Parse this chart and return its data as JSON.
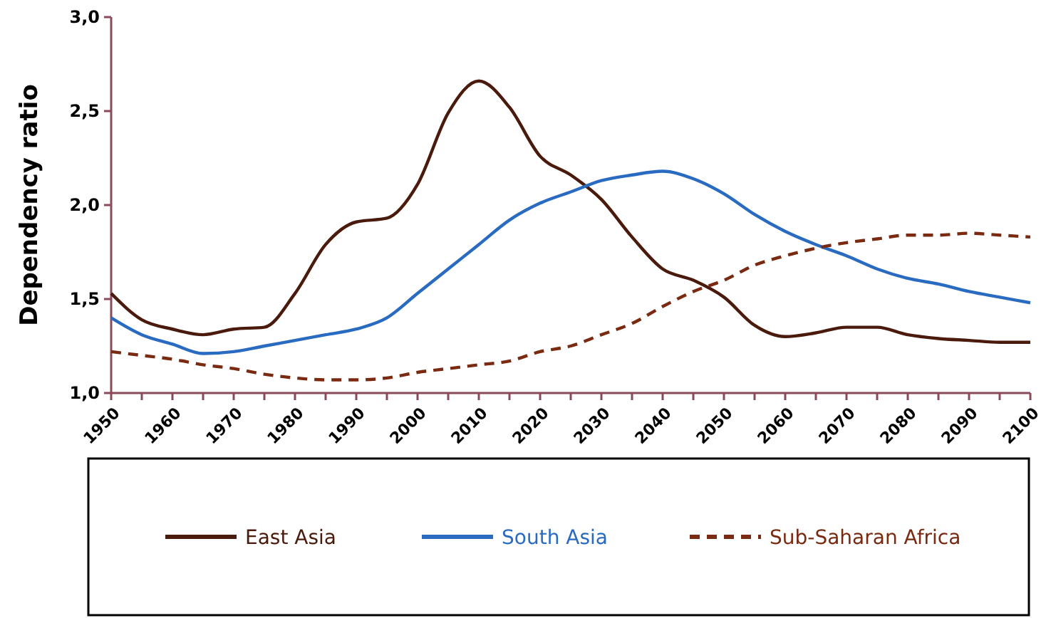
{
  "chart_data": {
    "type": "line",
    "ylabel": "Dependency ratio",
    "x": [
      1950,
      1955,
      1960,
      1965,
      1970,
      1975,
      1980,
      1985,
      1990,
      1995,
      2000,
      2005,
      2010,
      2015,
      2020,
      2025,
      2030,
      2035,
      2040,
      2045,
      2050,
      2055,
      2060,
      2065,
      2070,
      2075,
      2080,
      2085,
      2090,
      2095,
      2100
    ],
    "series": [
      {
        "name": "East Asia",
        "color": "#4a1a0c",
        "line_style": "solid",
        "values": [
          1.53,
          1.39,
          1.34,
          1.31,
          1.34,
          1.35,
          1.53,
          1.79,
          1.91,
          1.93,
          2.11,
          2.49,
          2.66,
          2.52,
          2.26,
          2.16,
          2.03,
          1.83,
          1.66,
          1.6,
          1.51,
          1.36,
          1.3,
          1.32,
          1.35,
          1.35,
          1.31,
          1.29,
          1.28,
          1.27,
          1.27
        ]
      },
      {
        "name": "South Asia",
        "color": "#2a6bc2",
        "line_style": "solid",
        "values": [
          1.4,
          1.31,
          1.26,
          1.21,
          1.22,
          1.25,
          1.28,
          1.31,
          1.34,
          1.4,
          1.53,
          1.66,
          1.79,
          1.92,
          2.01,
          2.07,
          2.13,
          2.16,
          2.18,
          2.14,
          2.06,
          1.95,
          1.86,
          1.79,
          1.73,
          1.66,
          1.61,
          1.58,
          1.54,
          1.51,
          1.48
        ]
      },
      {
        "name": "Sub-Saharan Africa",
        "color": "#7a2a10",
        "line_style": "dashed",
        "values": [
          1.22,
          1.2,
          1.18,
          1.15,
          1.13,
          1.1,
          1.08,
          1.07,
          1.07,
          1.08,
          1.11,
          1.13,
          1.15,
          1.17,
          1.22,
          1.25,
          1.31,
          1.37,
          1.46,
          1.54,
          1.6,
          1.68,
          1.73,
          1.77,
          1.8,
          1.82,
          1.84,
          1.84,
          1.85,
          1.84,
          1.83
        ]
      }
    ],
    "xlim": [
      1950,
      2100
    ],
    "xticks": [
      1950,
      {
        "value": 1955,
        "label": null
      },
      1960,
      {
        "value": 1965,
        "label": null
      },
      1970,
      {
        "value": 1975,
        "label": null
      },
      1980,
      {
        "value": 1985,
        "label": null
      },
      1990,
      {
        "value": 1995,
        "label": null
      },
      2000,
      {
        "value": 2005,
        "label": null
      },
      2010,
      {
        "value": 2015,
        "label": null
      },
      2020,
      {
        "value": 2025,
        "label": null
      },
      2030,
      {
        "value": 2035,
        "label": null
      },
      2040,
      {
        "value": 2045,
        "label": null
      },
      2050,
      {
        "value": 2055,
        "label": null
      },
      2060,
      {
        "value": 2065,
        "label": null
      },
      2070,
      {
        "value": 2075,
        "label": null
      },
      2080,
      {
        "value": 2085,
        "label": null
      },
      2090,
      {
        "value": 2095,
        "label": null
      },
      2100
    ],
    "ylim": [
      1,
      3
    ],
    "yticks": [
      {
        "value": 1,
        "label": "1,0"
      },
      {
        "value": 1.5,
        "label": "1,5"
      },
      {
        "value": 2,
        "label": "2,0"
      },
      {
        "value": 2.5,
        "label": "2,5"
      },
      {
        "value": 3,
        "label": "3,0"
      }
    ],
    "grid": false,
    "legend": "bottom",
    "marker": "none"
  }
}
